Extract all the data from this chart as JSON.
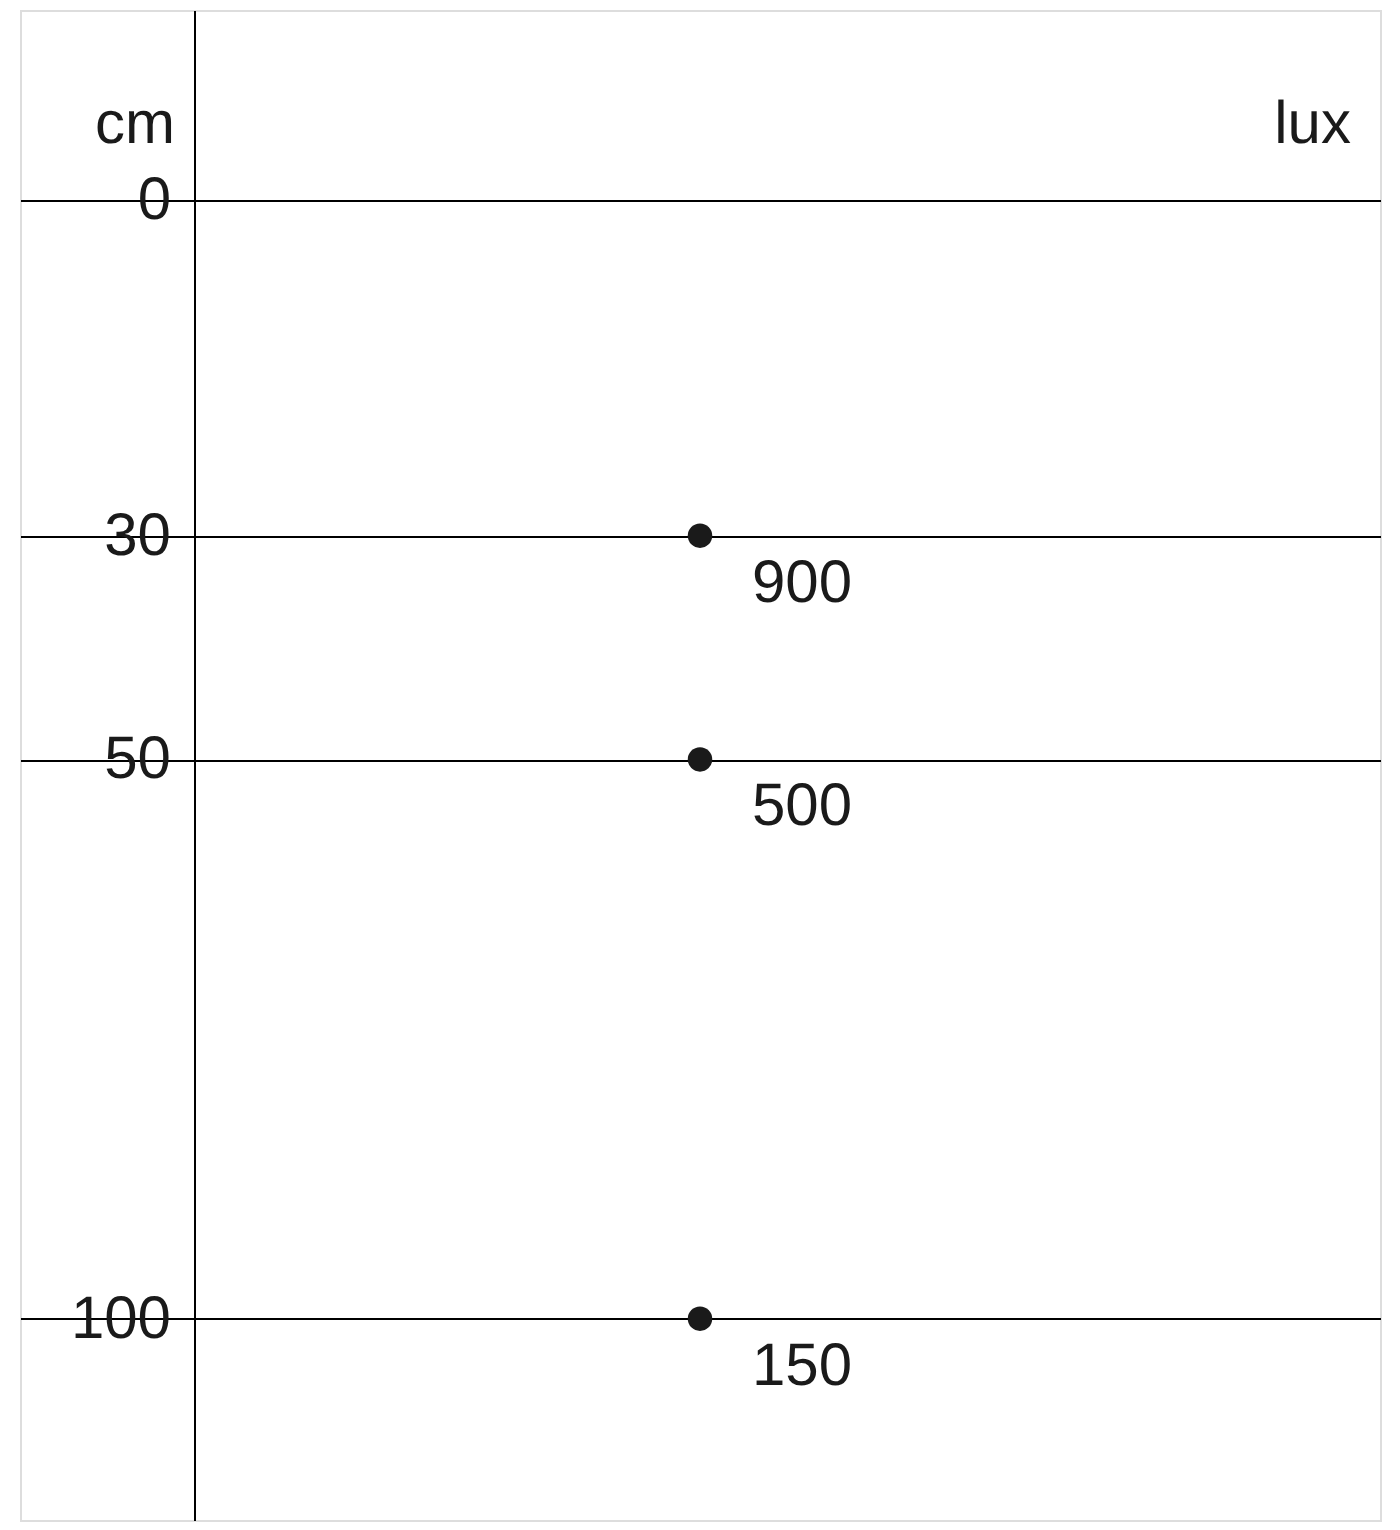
{
  "chart_data": {
    "type": "scatter",
    "ylabel": "cm",
    "y2label": "lux",
    "categories": [
      null
    ],
    "series": [
      {
        "color": "#1a1a1a",
        "values": [
          30
        ]
      },
      {
        "color": "#1a1a1a",
        "values": [
          50
        ]
      },
      {
        "color": "#1a1a1a",
        "values": [
          100
        ]
      }
    ],
    "annotations": [
      "900",
      "500",
      "150"
    ],
    "marker": "circle",
    "ylim": [
      118,
      -17
    ],
    "yticks": [
      0,
      30,
      50,
      100
    ],
    "grid": true,
    "tick_labels": "y"
  }
}
